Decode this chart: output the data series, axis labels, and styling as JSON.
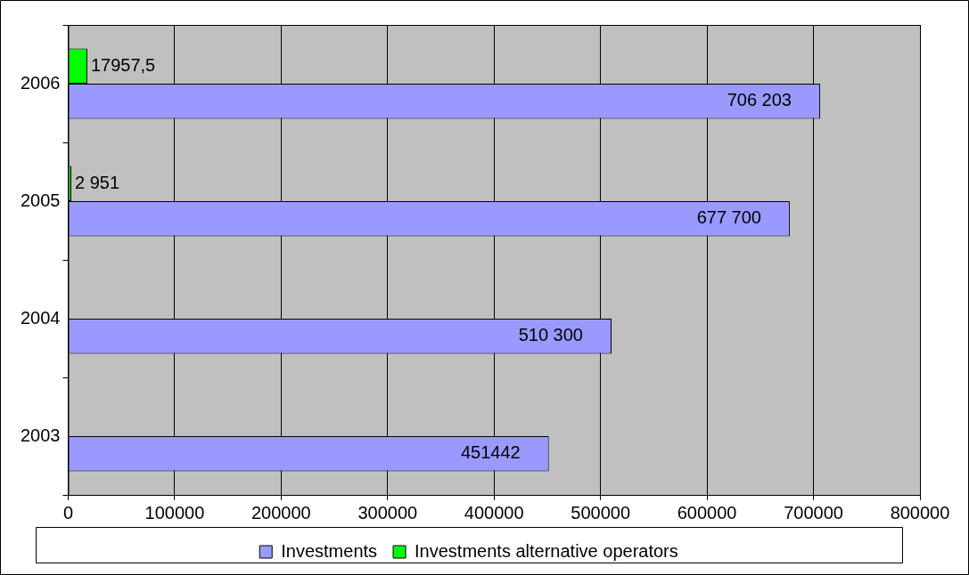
{
  "chart_data": {
    "type": "bar",
    "orientation": "horizontal",
    "categories": [
      "2006",
      "2005",
      "2004",
      "2003"
    ],
    "series": [
      {
        "name": "Investments",
        "color": "#9999ff",
        "values": [
          706203,
          677700,
          510300,
          451442
        ],
        "value_labels": [
          "706 203",
          "677 700",
          "510 300",
          "451442"
        ]
      },
      {
        "name": "Investments alternative operators",
        "color": "#00ff00",
        "values": [
          17957.5,
          2951,
          null,
          null
        ],
        "value_labels": [
          "17957,5",
          "2 951",
          null,
          null
        ]
      }
    ],
    "xlim": [
      0,
      800000
    ],
    "xticks": [
      0,
      100000,
      200000,
      300000,
      400000,
      500000,
      600000,
      700000,
      800000
    ],
    "grid": "x",
    "legend": "bottom"
  }
}
